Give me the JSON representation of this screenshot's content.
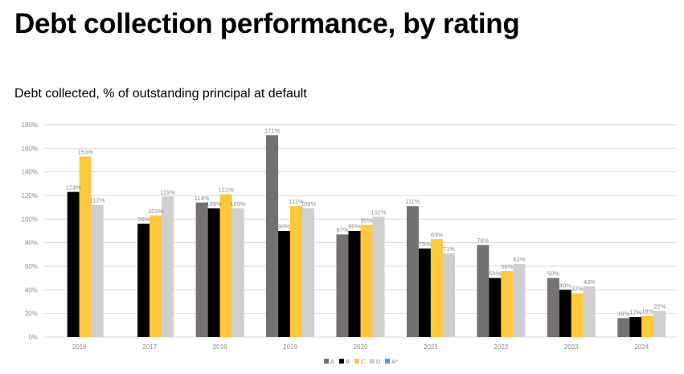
{
  "title": "Debt collection performance, by rating",
  "subtitle": "Debt collected, % of outstanding principal at default",
  "colors": {
    "A": "#767171",
    "B": "#000000",
    "C": "#ffc83d",
    "D": "#d0cece",
    "A*": "#5b9bd5",
    "grid": "#d9d9d9",
    "text": "#8c8c8c"
  },
  "chart_data": {
    "type": "bar",
    "title": "",
    "xlabel": "",
    "ylabel": "",
    "ylim": [
      0,
      180
    ],
    "yticks": [
      "0%",
      "20%",
      "40%",
      "60%",
      "80%",
      "100%",
      "120%",
      "140%",
      "160%",
      "180%"
    ],
    "grid": true,
    "legend_position": "bottom",
    "categories": [
      "2016",
      "2017",
      "2018",
      "2019",
      "2020",
      "2021",
      "2022",
      "2023",
      "2024"
    ],
    "series": [
      {
        "name": "A",
        "values": [
          null,
          null,
          114,
          171,
          87,
          111,
          78,
          50,
          16
        ]
      },
      {
        "name": "B",
        "values": [
          123,
          96,
          109,
          90,
          90,
          75,
          50,
          40,
          17
        ]
      },
      {
        "name": "C",
        "values": [
          153,
          103,
          121,
          111,
          95,
          83,
          56,
          37,
          18
        ]
      },
      {
        "name": "D",
        "values": [
          112,
          119,
          109,
          109,
          102,
          71,
          62,
          43,
          22
        ]
      },
      {
        "name": "A*",
        "values": [
          null,
          null,
          null,
          null,
          null,
          null,
          null,
          null,
          null
        ]
      }
    ]
  }
}
